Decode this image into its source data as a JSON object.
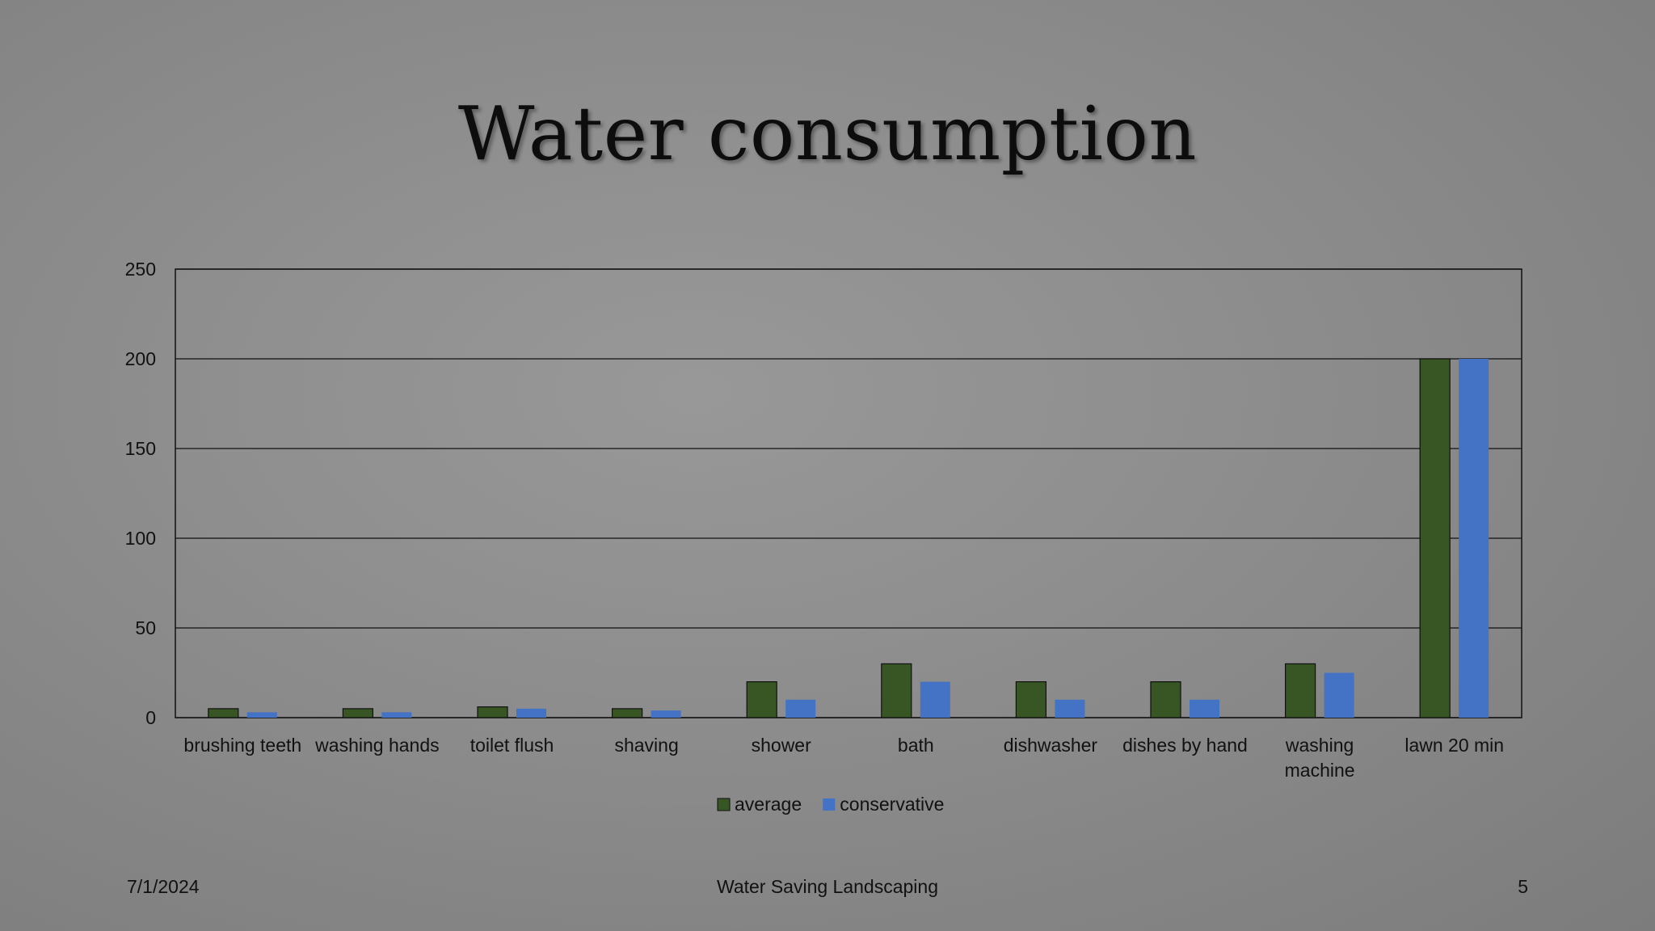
{
  "slide": {
    "title": "Water consumption",
    "footer_date": "7/1/2024",
    "footer_center": "Water Saving Landscaping",
    "page_number": "5"
  },
  "chart_data": {
    "type": "bar",
    "title": "",
    "xlabel": "",
    "ylabel": "",
    "categories": [
      "brushing teeth",
      "washing hands",
      "toilet flush",
      "shaving",
      "shower",
      "bath",
      "dishwasher",
      "dishes by hand",
      "washing machine",
      "lawn 20 min"
    ],
    "series": [
      {
        "name": "average",
        "color": "#375623",
        "values": [
          5,
          5,
          6,
          5,
          20,
          30,
          20,
          20,
          30,
          200
        ]
      },
      {
        "name": "conservative",
        "color": "#4472c4",
        "values": [
          3,
          3,
          5,
          4,
          10,
          20,
          10,
          10,
          25,
          200
        ]
      }
    ],
    "ylim": [
      0,
      250
    ],
    "yticks": [
      0,
      50,
      100,
      150,
      200,
      250
    ],
    "grid": true,
    "legend_position": "bottom"
  }
}
